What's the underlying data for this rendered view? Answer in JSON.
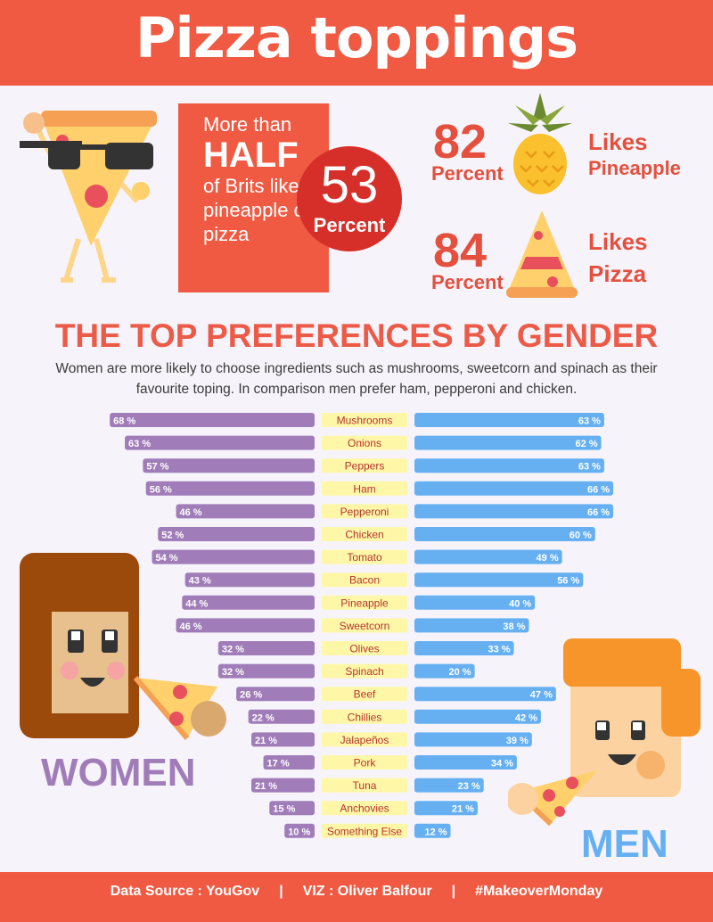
{
  "header": {
    "title": "Pizza toppings"
  },
  "half_stat": {
    "more_than": "More than",
    "half": "HALF",
    "rest": "of Brits like pineapple on pizza",
    "number": "53",
    "percent_label": "Percent"
  },
  "stats": [
    {
      "number": "82",
      "percent_label": "Percent",
      "label_line1": "Likes",
      "label_line2": "Pineapple"
    },
    {
      "number": "84",
      "percent_label": "Percent",
      "label_line1": "Likes",
      "label_line2": "Pizza"
    }
  ],
  "section": {
    "title": "THE TOP PREFERENCES BY GENDER",
    "subtitle": "Women are more likely to choose ingredients such as mushrooms, sweetcorn and spinach as their favourite toping. In comparison men prefer ham, pepperoni and chicken."
  },
  "women_label": "WOMEN",
  "men_label": "MEN",
  "footer": {
    "source": "Data Source : YouGov",
    "viz": "VIZ : Oliver Balfour",
    "tag": "#MakeoverMonday"
  },
  "colors": {
    "header": "#f05a43",
    "women": "#a07cb9",
    "men": "#66b0f2",
    "label_bg": "#fff7a8",
    "label_text": "#b5352e"
  },
  "chart_data": {
    "type": "bar",
    "categories": [
      "Mushrooms",
      "Onions",
      "Peppers",
      "Ham",
      "Pepperoni",
      "Chicken",
      "Tomato",
      "Bacon",
      "Pineapple",
      "Sweetcorn",
      "Olives",
      "Spinach",
      "Beef",
      "Chillies",
      "Jalapeños",
      "Pork",
      "Tuna",
      "Anchovies",
      "Something Else"
    ],
    "series": [
      {
        "name": "WOMEN",
        "values": [
          68,
          63,
          57,
          56,
          46,
          52,
          54,
          43,
          44,
          46,
          32,
          32,
          26,
          22,
          21,
          17,
          21,
          15,
          10
        ]
      },
      {
        "name": "MEN",
        "values": [
          63,
          62,
          63,
          66,
          66,
          60,
          49,
          56,
          40,
          38,
          33,
          20,
          47,
          42,
          39,
          34,
          23,
          21,
          12
        ]
      }
    ],
    "unit": "%"
  }
}
